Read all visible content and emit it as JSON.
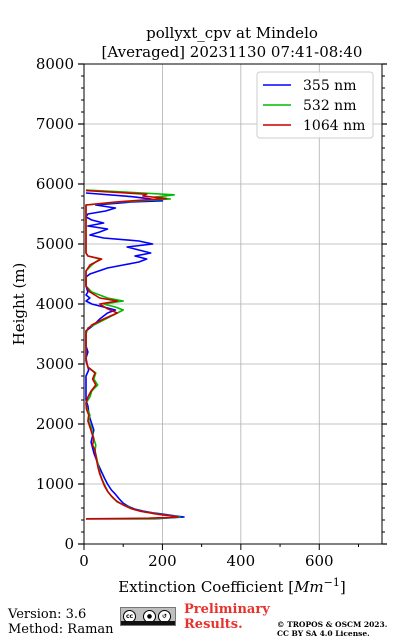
{
  "chart_data": {
    "type": "line",
    "title": "pollyxt_cpv at Mindelo",
    "subtitle": "[Averaged] 20231130 07:41-08:40",
    "xlabel": "Extinction Coefficient [Mm⁻¹]",
    "ylabel": "Height (m)",
    "xlim": [
      0,
      760
    ],
    "ylim": [
      0,
      8000
    ],
    "xticks": [
      0,
      200,
      400,
      600
    ],
    "yticks": [
      0,
      1000,
      2000,
      3000,
      4000,
      5000,
      6000,
      7000,
      8000
    ],
    "grid": true,
    "legend_position": "top-right",
    "series": [
      {
        "name": "355 nm",
        "color": "#0000ff",
        "points": [
          [
            5,
            420
          ],
          [
            180,
            420
          ],
          [
            255,
            450
          ],
          [
            230,
            470
          ],
          [
            200,
            500
          ],
          [
            175,
            520
          ],
          [
            150,
            550
          ],
          [
            130,
            580
          ],
          [
            115,
            620
          ],
          [
            100,
            680
          ],
          [
            90,
            750
          ],
          [
            80,
            830
          ],
          [
            70,
            900
          ],
          [
            60,
            1000
          ],
          [
            52,
            1100
          ],
          [
            45,
            1200
          ],
          [
            38,
            1300
          ],
          [
            32,
            1400
          ],
          [
            26,
            1500
          ],
          [
            22,
            1600
          ],
          [
            18,
            1700
          ],
          [
            22,
            1800
          ],
          [
            25,
            1900
          ],
          [
            20,
            2000
          ],
          [
            15,
            2100
          ],
          [
            12,
            2200
          ],
          [
            10,
            2300
          ],
          [
            5,
            2400
          ],
          [
            5,
            2500
          ],
          [
            5,
            2600
          ],
          [
            5,
            2700
          ],
          [
            5,
            2800
          ],
          [
            12,
            2900
          ],
          [
            8,
            3000
          ],
          [
            5,
            3100
          ],
          [
            10,
            3200
          ],
          [
            5,
            3300
          ],
          [
            5,
            3550
          ],
          [
            25,
            3650
          ],
          [
            40,
            3750
          ],
          [
            60,
            3850
          ],
          [
            80,
            3900
          ],
          [
            50,
            3950
          ],
          [
            20,
            4000
          ],
          [
            5,
            4050
          ],
          [
            15,
            4100
          ],
          [
            5,
            4150
          ],
          [
            10,
            4200
          ],
          [
            5,
            4300
          ],
          [
            5,
            4450
          ],
          [
            15,
            4500
          ],
          [
            60,
            4600
          ],
          [
            100,
            4650
          ],
          [
            140,
            4700
          ],
          [
            160,
            4750
          ],
          [
            130,
            4800
          ],
          [
            170,
            4850
          ],
          [
            140,
            4900
          ],
          [
            110,
            4950
          ],
          [
            175,
            5000
          ],
          [
            140,
            5050
          ],
          [
            50,
            5100
          ],
          [
            15,
            5150
          ],
          [
            40,
            5200
          ],
          [
            60,
            5250
          ],
          [
            10,
            5300
          ],
          [
            50,
            5350
          ],
          [
            20,
            5400
          ],
          [
            5,
            5450
          ],
          [
            10,
            5500
          ],
          [
            55,
            5550
          ],
          [
            80,
            5600
          ],
          [
            30,
            5650
          ],
          [
            120,
            5700
          ],
          [
            200,
            5720
          ],
          [
            160,
            5760
          ],
          [
            120,
            5790
          ],
          [
            5,
            5850
          ]
        ]
      },
      {
        "name": "532 nm",
        "color": "#00bb00",
        "points": [
          [
            5,
            420
          ],
          [
            170,
            420
          ],
          [
            245,
            450
          ],
          [
            210,
            480
          ],
          [
            180,
            510
          ],
          [
            150,
            540
          ],
          [
            125,
            580
          ],
          [
            105,
            640
          ],
          [
            85,
            700
          ],
          [
            72,
            780
          ],
          [
            62,
            860
          ],
          [
            55,
            950
          ],
          [
            48,
            1050
          ],
          [
            42,
            1150
          ],
          [
            38,
            1250
          ],
          [
            35,
            1350
          ],
          [
            32,
            1450
          ],
          [
            28,
            1550
          ],
          [
            30,
            1650
          ],
          [
            25,
            1750
          ],
          [
            22,
            1850
          ],
          [
            18,
            1950
          ],
          [
            12,
            2050
          ],
          [
            15,
            2150
          ],
          [
            8,
            2250
          ],
          [
            5,
            2350
          ],
          [
            15,
            2450
          ],
          [
            20,
            2550
          ],
          [
            35,
            2650
          ],
          [
            25,
            2750
          ],
          [
            30,
            2850
          ],
          [
            10,
            2950
          ],
          [
            5,
            3050
          ],
          [
            5,
            3500
          ],
          [
            10,
            3600
          ],
          [
            40,
            3700
          ],
          [
            70,
            3800
          ],
          [
            100,
            3900
          ],
          [
            80,
            3950
          ],
          [
            50,
            4000
          ],
          [
            100,
            4050
          ],
          [
            60,
            4100
          ],
          [
            20,
            4200
          ],
          [
            5,
            4300
          ],
          [
            5,
            4550
          ],
          [
            20,
            4650
          ],
          [
            40,
            4750
          ],
          [
            10,
            4800
          ],
          [
            5,
            4850
          ],
          [
            5,
            5650
          ],
          [
            90,
            5700
          ],
          [
            220,
            5750
          ],
          [
            180,
            5780
          ],
          [
            230,
            5820
          ],
          [
            150,
            5850
          ],
          [
            5,
            5900
          ]
        ]
      },
      {
        "name": "1064 nm",
        "color": "#cc0000",
        "points": [
          [
            5,
            420
          ],
          [
            165,
            430
          ],
          [
            240,
            450
          ],
          [
            205,
            480
          ],
          [
            175,
            510
          ],
          [
            145,
            545
          ],
          [
            120,
            590
          ],
          [
            100,
            650
          ],
          [
            82,
            720
          ],
          [
            70,
            800
          ],
          [
            60,
            880
          ],
          [
            52,
            970
          ],
          [
            46,
            1070
          ],
          [
            40,
            1170
          ],
          [
            36,
            1270
          ],
          [
            33,
            1370
          ],
          [
            30,
            1470
          ],
          [
            28,
            1560
          ],
          [
            22,
            1650
          ],
          [
            25,
            1750
          ],
          [
            20,
            1850
          ],
          [
            15,
            1950
          ],
          [
            10,
            2050
          ],
          [
            12,
            2150
          ],
          [
            6,
            2250
          ],
          [
            5,
            2350
          ],
          [
            10,
            2450
          ],
          [
            18,
            2550
          ],
          [
            30,
            2650
          ],
          [
            22,
            2750
          ],
          [
            28,
            2850
          ],
          [
            10,
            2950
          ],
          [
            5,
            3050
          ],
          [
            5,
            3550
          ],
          [
            20,
            3650
          ],
          [
            50,
            3750
          ],
          [
            85,
            3850
          ],
          [
            60,
            3920
          ],
          [
            40,
            4000
          ],
          [
            85,
            4050
          ],
          [
            40,
            4100
          ],
          [
            15,
            4200
          ],
          [
            5,
            4300
          ],
          [
            5,
            4550
          ],
          [
            15,
            4650
          ],
          [
            45,
            4750
          ],
          [
            10,
            4800
          ],
          [
            5,
            4850
          ],
          [
            5,
            5650
          ],
          [
            80,
            5700
          ],
          [
            210,
            5760
          ],
          [
            150,
            5800
          ],
          [
            160,
            5830
          ],
          [
            5,
            5890
          ]
        ]
      }
    ]
  },
  "footer": {
    "version": "Version: 3.6",
    "method": "Method: Raman",
    "preliminary_line1": "Preliminary",
    "preliminary_line2": "Results.",
    "copyright_line1": "© TROPOS & OSCM 2023.",
    "copyright_line2": "CC BY SA 4.0 License."
  },
  "license_badge": {
    "icon": "cc-by-sa-icon",
    "labels": [
      "BY",
      "SA"
    ]
  }
}
